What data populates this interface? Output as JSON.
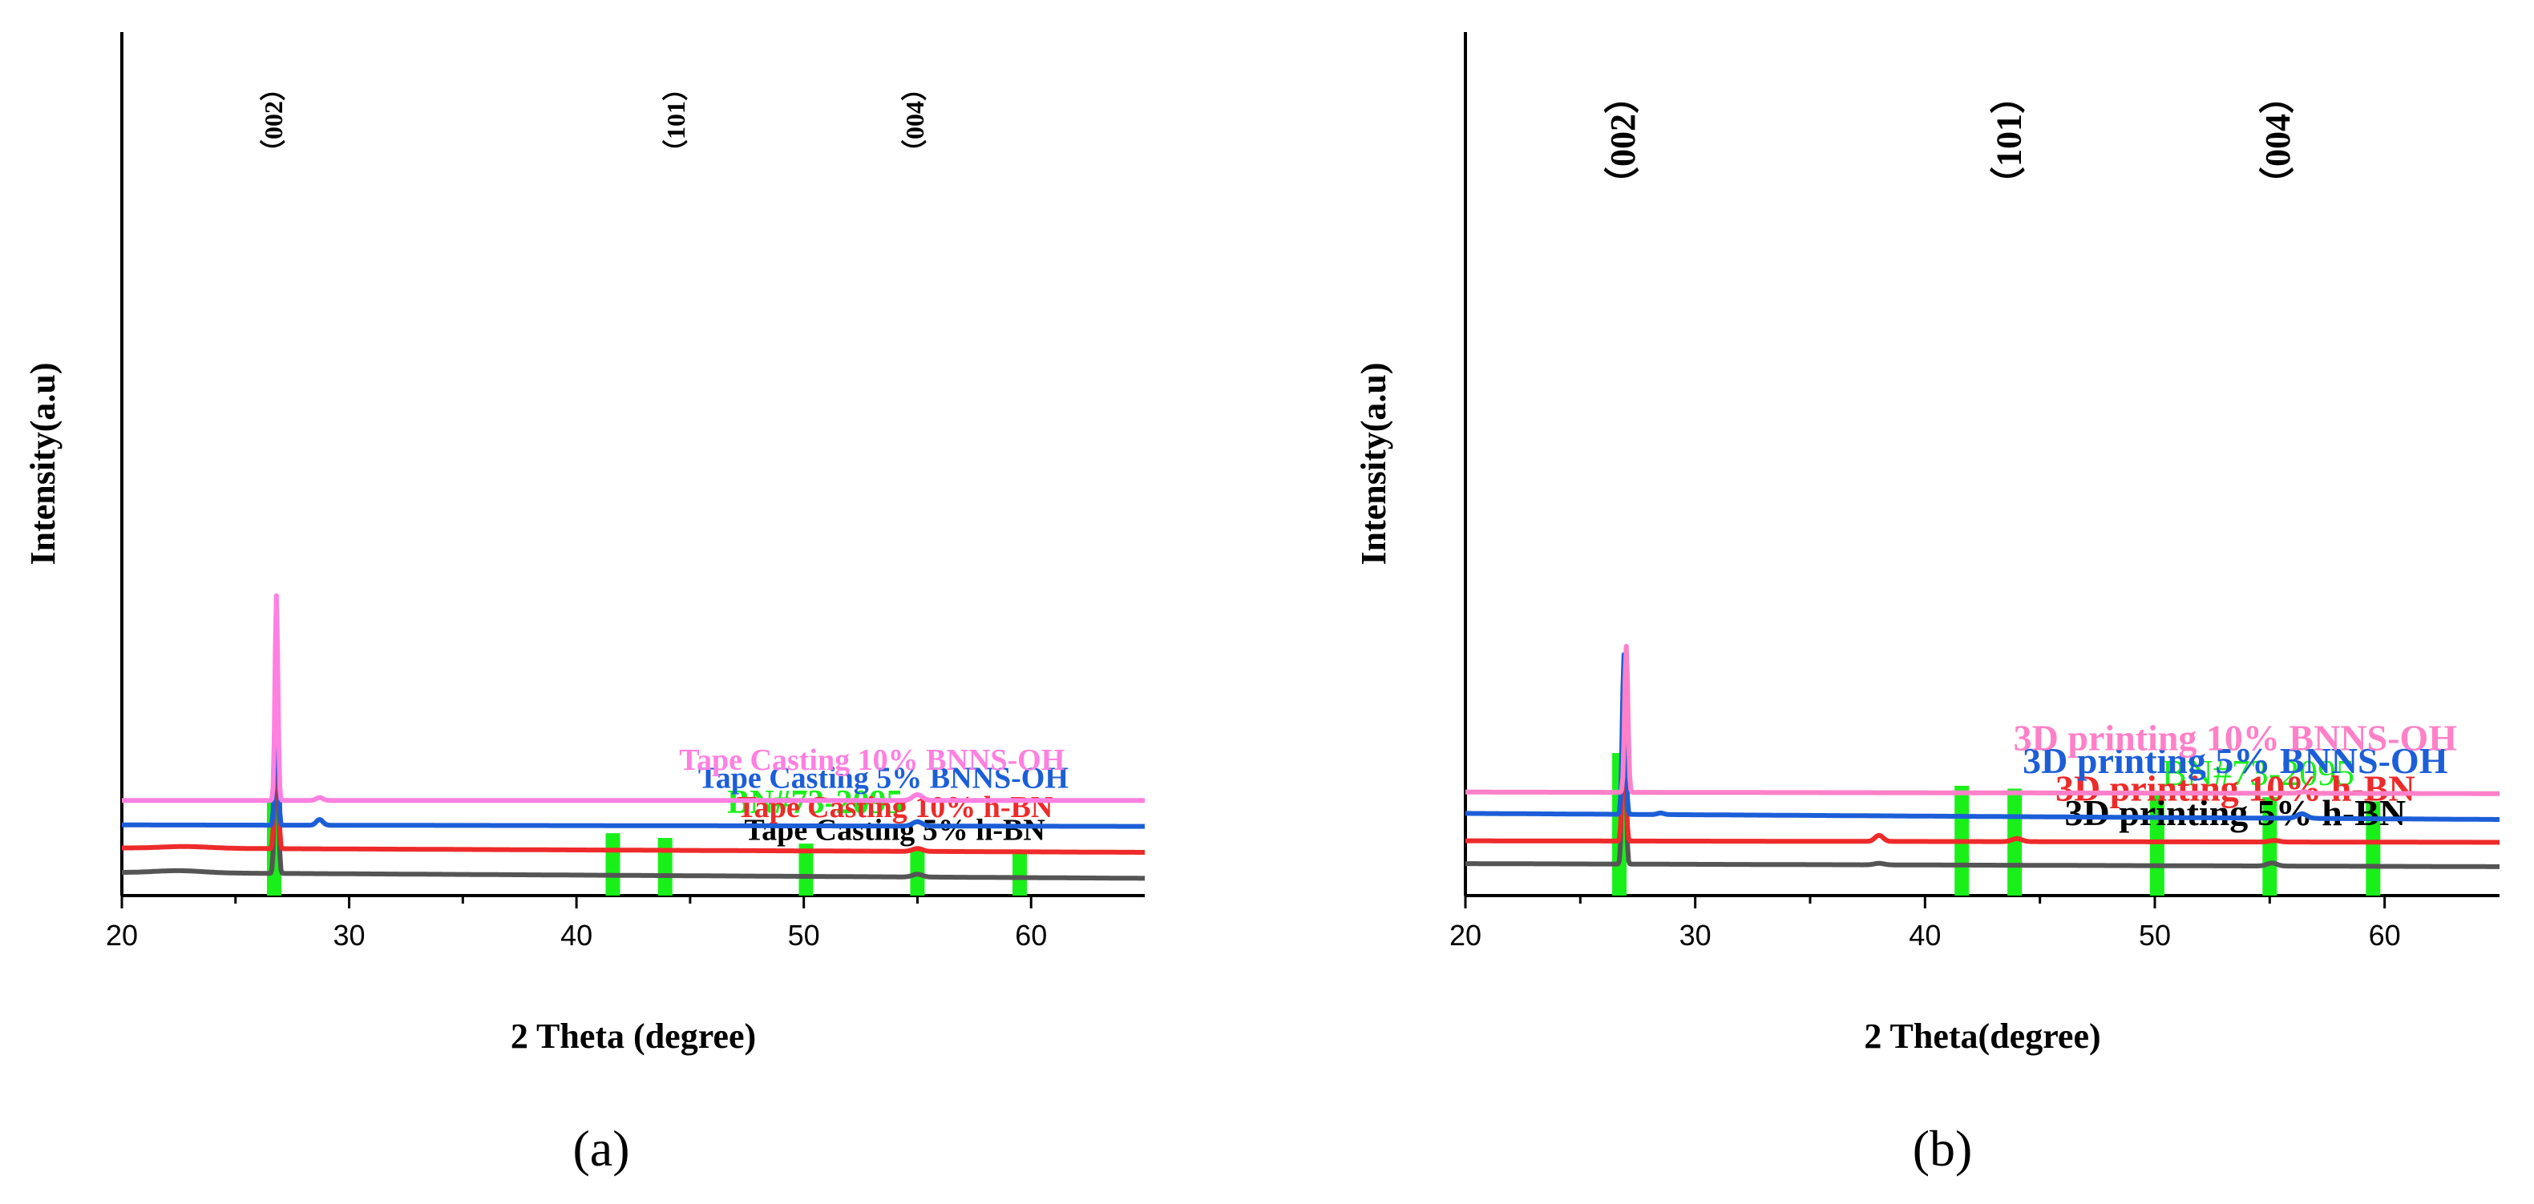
{
  "chart_data": [
    {
      "type": "line",
      "panel_label": "(a)",
      "xlabel": "2 Theta (degree)",
      "ylabel": "Intensity(a.u)",
      "xlim": [
        20,
        65
      ],
      "x_ticks": [
        20,
        30,
        40,
        50,
        60
      ],
      "x_minor_ticks": [
        25,
        35,
        45,
        55
      ],
      "peak_labels": [
        {
          "text": "（002）",
          "x": 26.8
        },
        {
          "text": "（101）",
          "x": 44.5
        },
        {
          "text": "（004）",
          "x": 55.0
        }
      ],
      "reference": {
        "name": "BN#73-2095",
        "color": "#19f019",
        "label_x": 50.5,
        "lines": [
          {
            "x": 26.7,
            "h": 1.0
          },
          {
            "x": 41.6,
            "h": 0.66
          },
          {
            "x": 43.9,
            "h": 0.61
          },
          {
            "x": 50.1,
            "h": 0.55
          },
          {
            "x": 55.0,
            "h": 0.5
          },
          {
            "x": 59.5,
            "h": 0.46
          }
        ]
      },
      "series": [
        {
          "name": "Tape Casting 5% h-BN",
          "color": "#555555",
          "label_color": "#000000",
          "label_x": 54.0,
          "base_start": 0.16,
          "base_end": 0.12,
          "bump": [
            22.5,
            0.015
          ],
          "peaks": [
            {
              "x": 26.8,
              "h": 1.36,
              "w": 0.1
            },
            {
              "x": 55.0,
              "h": 0.02,
              "w": 0.3
            }
          ]
        },
        {
          "name": "Tape Casting 10% h-BN",
          "color": "#ee2a2a",
          "label_color": "#ee2a2a",
          "label_x": 54.0,
          "base_start": 0.33,
          "base_end": 0.3,
          "bump": [
            22.8,
            0.012
          ],
          "peaks": [
            {
              "x": 26.8,
              "h": 1.22,
              "w": 0.1
            },
            {
              "x": 55.0,
              "h": 0.02,
              "w": 0.3
            }
          ]
        },
        {
          "name": "Tape Casting 5% BNNS-OH",
          "color": "#1c5ed8",
          "label_color": "#1c5ed8",
          "label_x": 53.5,
          "base_start": 0.49,
          "base_end": 0.48,
          "bump": [
            22.5,
            0.0
          ],
          "peaks": [
            {
              "x": 26.8,
              "h": 1.44,
              "w": 0.09
            },
            {
              "x": 28.7,
              "h": 0.04,
              "w": 0.2
            },
            {
              "x": 55.0,
              "h": 0.03,
              "w": 0.3
            }
          ]
        },
        {
          "name": "Tape Casting 10% BNNS-OH",
          "color": "#ff80e0",
          "label_color": "#ff80e0",
          "label_x": 53.0,
          "base_start": 0.66,
          "base_end": 0.66,
          "bump": [
            22.5,
            0.0
          ],
          "peaks": [
            {
              "x": 26.8,
              "h": 1.42,
              "w": 0.09
            },
            {
              "x": 28.7,
              "h": 0.02,
              "w": 0.2
            },
            {
              "x": 55.0,
              "h": 0.04,
              "w": 0.3
            }
          ]
        }
      ]
    },
    {
      "type": "line",
      "panel_label": "(b)",
      "xlabel": "2 Theta(degree)",
      "ylabel": "Intensity(a.u)",
      "xlim": [
        20,
        65
      ],
      "x_ticks": [
        20,
        30,
        40,
        50,
        60
      ],
      "x_minor_ticks": [
        25,
        35,
        45,
        55
      ],
      "peak_labels": [
        {
          "text": "（002）",
          "x": 27.0
        },
        {
          "text": "（101）",
          "x": 43.8
        },
        {
          "text": "（004）",
          "x": 55.5
        }
      ],
      "reference": {
        "name": "BN#73-2095",
        "color": "#19f019",
        "label_x": 54.5,
        "lines": [
          {
            "x": 26.7,
            "h": 1.0
          },
          {
            "x": 41.6,
            "h": 0.77
          },
          {
            "x": 43.9,
            "h": 0.75
          },
          {
            "x": 50.1,
            "h": 0.71
          },
          {
            "x": 55.0,
            "h": 0.69
          },
          {
            "x": 59.5,
            "h": 0.66
          }
        ]
      },
      "series": [
        {
          "name": "3D printing 5% h-BN",
          "color": "#555555",
          "label_color": "#000000",
          "label_x": 53.5,
          "base_start": 0.21,
          "base_end": 0.19,
          "bump": [
            22.5,
            0.0
          ],
          "peaks": [
            {
              "x": 26.9,
              "h": 1.32,
              "w": 0.1
            },
            {
              "x": 38.0,
              "h": 0.01,
              "w": 0.3
            },
            {
              "x": 55.1,
              "h": 0.02,
              "w": 0.3
            }
          ]
        },
        {
          "name": "3D printing 10% h-BN",
          "color": "#ee2a2a",
          "label_color": "#ee2a2a",
          "label_x": 53.5,
          "base_start": 0.36,
          "base_end": 0.35,
          "bump": [
            22.5,
            0.0
          ],
          "peaks": [
            {
              "x": 26.9,
              "h": 0.96,
              "w": 0.1
            },
            {
              "x": 38.0,
              "h": 0.04,
              "w": 0.25
            },
            {
              "x": 44.0,
              "h": 0.02,
              "w": 0.3
            },
            {
              "x": 55.2,
              "h": 0.01,
              "w": 0.3
            }
          ]
        },
        {
          "name": "3D printing 5% BNNS-OH",
          "color": "#1c5ed8",
          "label_color": "#1c5ed8",
          "label_x": 53.5,
          "base_start": 0.54,
          "base_end": 0.5,
          "bump": [
            22.5,
            0.0
          ],
          "peaks": [
            {
              "x": 26.9,
              "h": 1.05,
              "w": 0.1
            },
            {
              "x": 28.5,
              "h": 0.01,
              "w": 0.2
            },
            {
              "x": 56.4,
              "h": 0.03,
              "w": 0.3
            }
          ]
        },
        {
          "name": "3D printing 10% BNNS-OH",
          "color": "#ff80c8",
          "label_color": "#ff80c8",
          "label_x": 53.5,
          "base_start": 0.68,
          "base_end": 0.67,
          "bump": [
            22.5,
            0.0
          ],
          "peaks": [
            {
              "x": 27.0,
              "h": 0.96,
              "w": 0.1
            },
            {
              "x": 56.5,
              "h": 0.01,
              "w": 0.3
            }
          ]
        }
      ]
    }
  ]
}
